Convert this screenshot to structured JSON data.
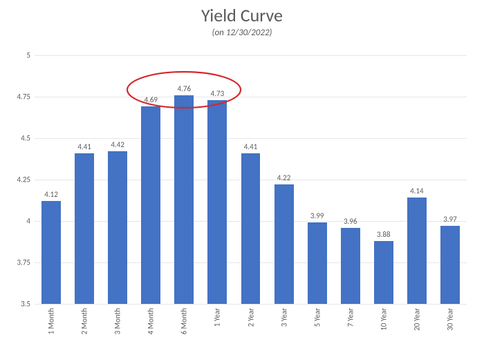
{
  "chart": {
    "type": "bar",
    "title": "Yield Curve",
    "title_fontsize": 26,
    "subtitle": "(on 12/30/2022)",
    "subtitle_fontsize": 13,
    "categories": [
      "1 Month",
      "2 Month",
      "3 Month",
      "4 Month",
      "6 Month",
      "1 Year",
      "2 Year",
      "3 Year",
      "5 Year",
      "7 Year",
      "10 Year",
      "20 Year",
      "30 Year"
    ],
    "values": [
      4.12,
      4.41,
      4.42,
      4.69,
      4.76,
      4.73,
      4.41,
      4.22,
      3.99,
      3.96,
      3.88,
      4.14,
      3.97
    ],
    "bar_color": "#4472c4",
    "background_color": "#ffffff",
    "grid_color": "#e6e6e6",
    "axis_text_color": "#595959",
    "ylim": [
      3.5,
      5.0
    ],
    "ytick_step": 0.25,
    "yticks": [
      3.5,
      3.75,
      4,
      4.25,
      4.5,
      4.75,
      5
    ],
    "label_fontsize": 11,
    "tick_fontsize": 11,
    "bar_width_ratio": 0.58,
    "annotation": {
      "shape": "ellipse",
      "stroke": "#d4282c",
      "stroke_width": 2.2,
      "covers_indices": [
        3,
        4,
        5
      ]
    }
  }
}
